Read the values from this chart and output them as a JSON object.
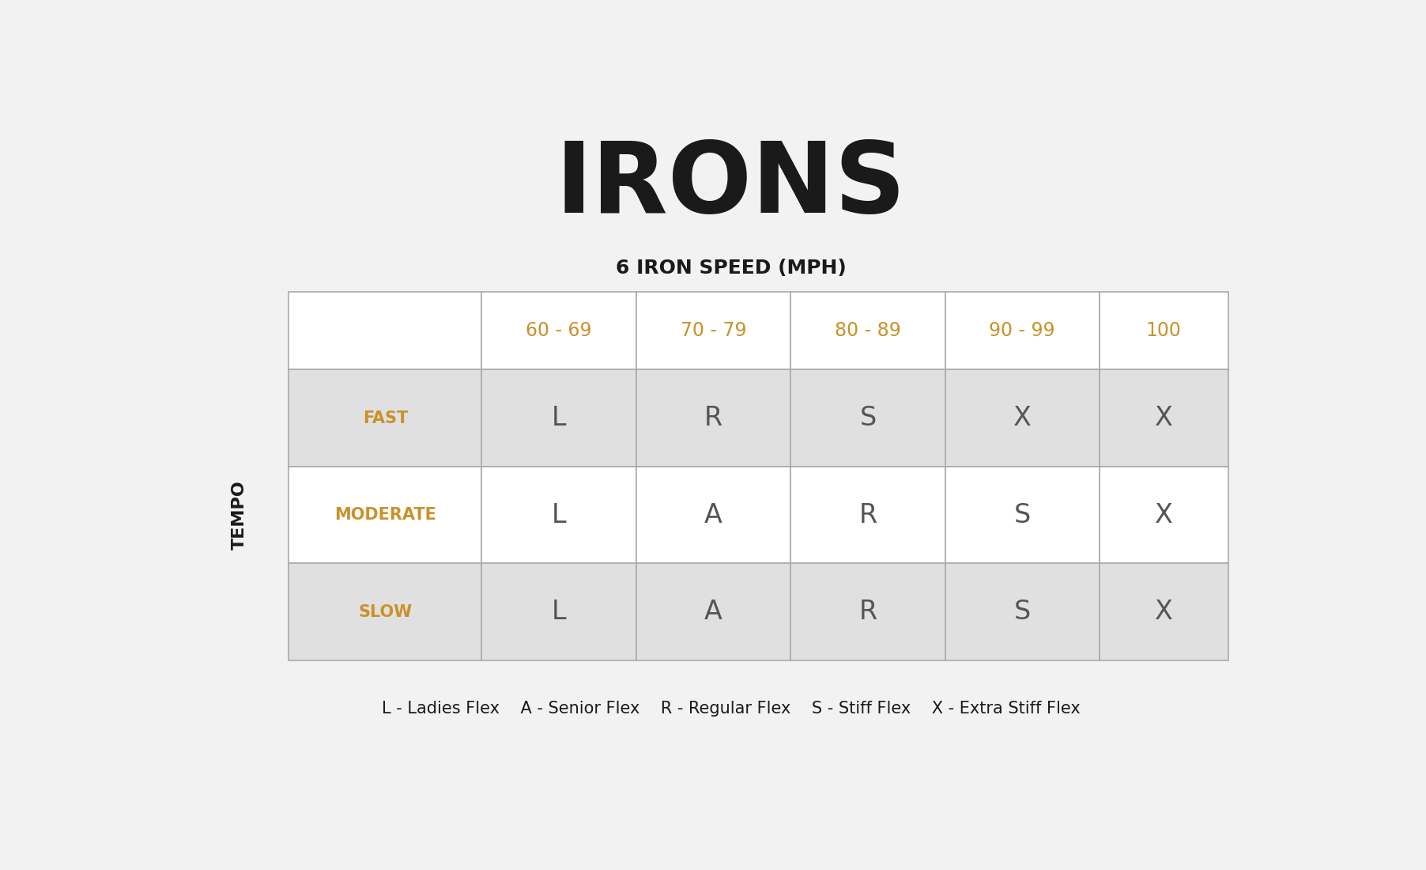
{
  "title": "IRONS",
  "subtitle": "6 IRON SPEED (MPH)",
  "col_headers": [
    "",
    "60 - 69",
    "70 - 79",
    "80 - 89",
    "90 - 99",
    "100"
  ],
  "row_headers": [
    "FAST",
    "MODERATE",
    "SLOW"
  ],
  "table_data": [
    [
      "L",
      "R",
      "S",
      "X",
      "X"
    ],
    [
      "L",
      "A",
      "R",
      "S",
      "X"
    ],
    [
      "L",
      "A",
      "R",
      "S",
      "X"
    ]
  ],
  "tempo_label": "TEMPO",
  "legend_text": "L - Ladies Flex    A - Senior Flex    R - Regular Flex    S - Stiff Flex    X - Extra Stiff Flex",
  "bg_color": "#f2f2f2",
  "table_bg_color": "#ffffff",
  "shaded_row_color": "#e0e0e0",
  "header_text_color": "#c8922a",
  "cell_text_color": "#555555",
  "title_color": "#1a1a1a",
  "border_color": "#aaaaaa",
  "tempo_color": "#1a1a1a",
  "row_header_color": "#c8922a"
}
